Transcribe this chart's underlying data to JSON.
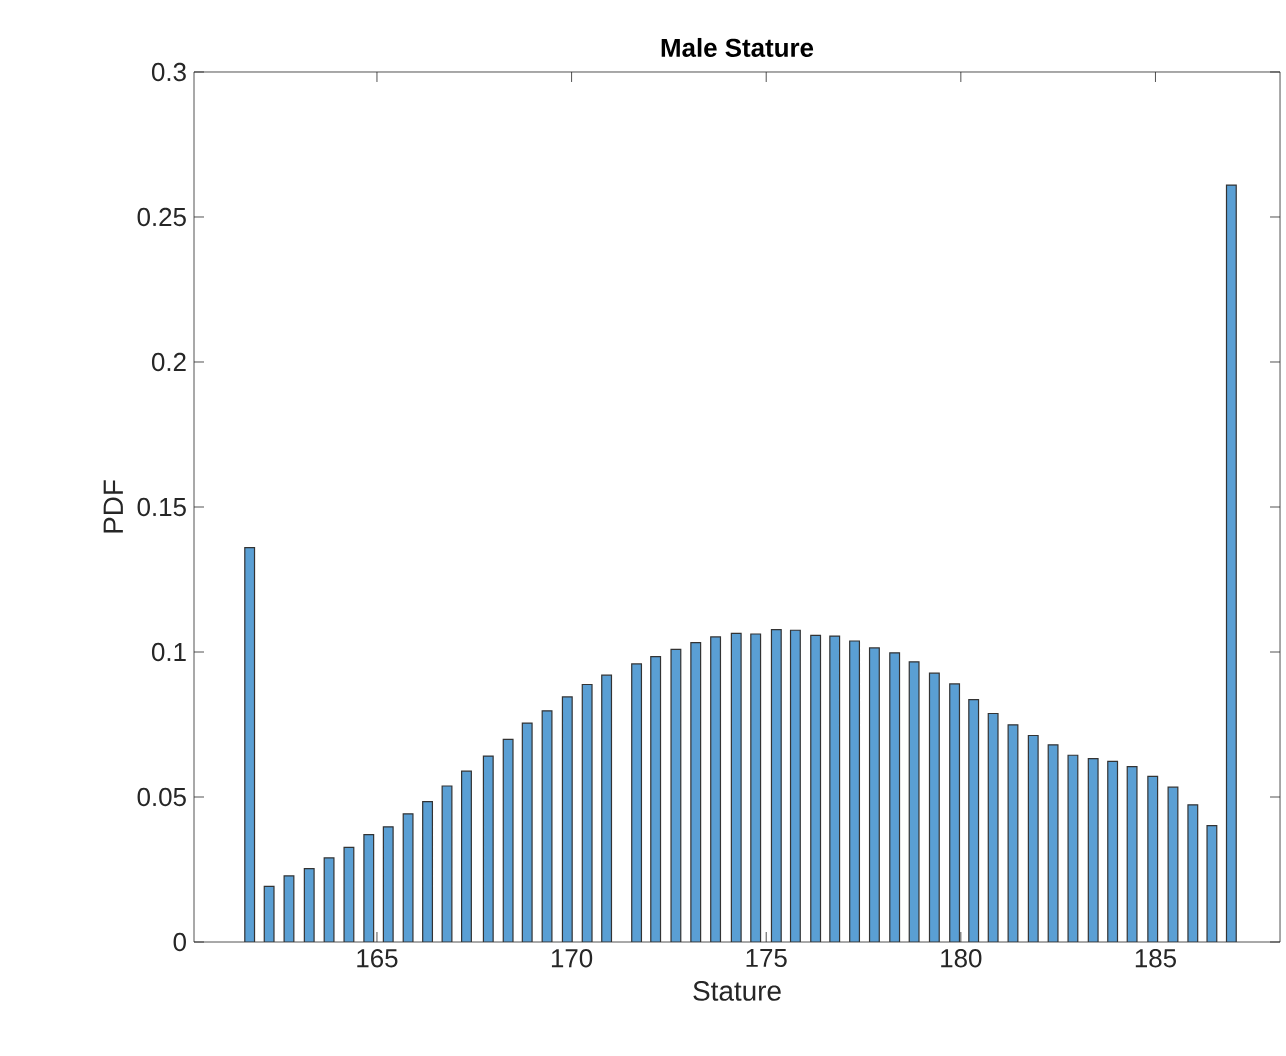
{
  "chart_data": {
    "type": "bar",
    "title": "Male Stature",
    "xlabel": "Stature",
    "ylabel": "PDF",
    "x": [
      161.73,
      162.23,
      162.74,
      163.26,
      163.77,
      164.28,
      164.79,
      165.29,
      165.8,
      166.3,
      166.8,
      167.3,
      167.86,
      168.37,
      168.86,
      169.37,
      169.89,
      170.4,
      170.9,
      171.67,
      172.16,
      172.68,
      173.19,
      173.7,
      174.23,
      174.73,
      175.26,
      175.75,
      176.27,
      176.76,
      177.27,
      177.78,
      178.3,
      178.8,
      179.32,
      179.84,
      180.33,
      180.83,
      181.34,
      181.86,
      182.37,
      182.88,
      183.4,
      183.9,
      184.4,
      184.93,
      185.45,
      185.96,
      186.45,
      186.95
    ],
    "values": [
      0.136,
      0.0192,
      0.0228,
      0.0253,
      0.029,
      0.0326,
      0.037,
      0.0397,
      0.0442,
      0.0484,
      0.0538,
      0.0589,
      0.0641,
      0.0699,
      0.0755,
      0.0797,
      0.0845,
      0.0888,
      0.092,
      0.0959,
      0.0984,
      0.1009,
      0.1032,
      0.1052,
      0.1064,
      0.1062,
      0.1077,
      0.1075,
      0.1057,
      0.1055,
      0.1038,
      0.1014,
      0.0997,
      0.0966,
      0.0927,
      0.089,
      0.0836,
      0.0788,
      0.0749,
      0.0712,
      0.068,
      0.0644,
      0.0632,
      0.0623,
      0.0605,
      0.0571,
      0.0534,
      0.0473,
      0.0401,
      0.261
    ],
    "color": "#5a9fd4",
    "xlim": [
      160.3,
      188.2
    ],
    "ylim": [
      0,
      0.3
    ],
    "xticks": [
      165,
      170,
      175,
      180,
      185
    ],
    "yticks": [
      0,
      0.05,
      0.1,
      0.15,
      0.2,
      0.25,
      0.3
    ]
  }
}
